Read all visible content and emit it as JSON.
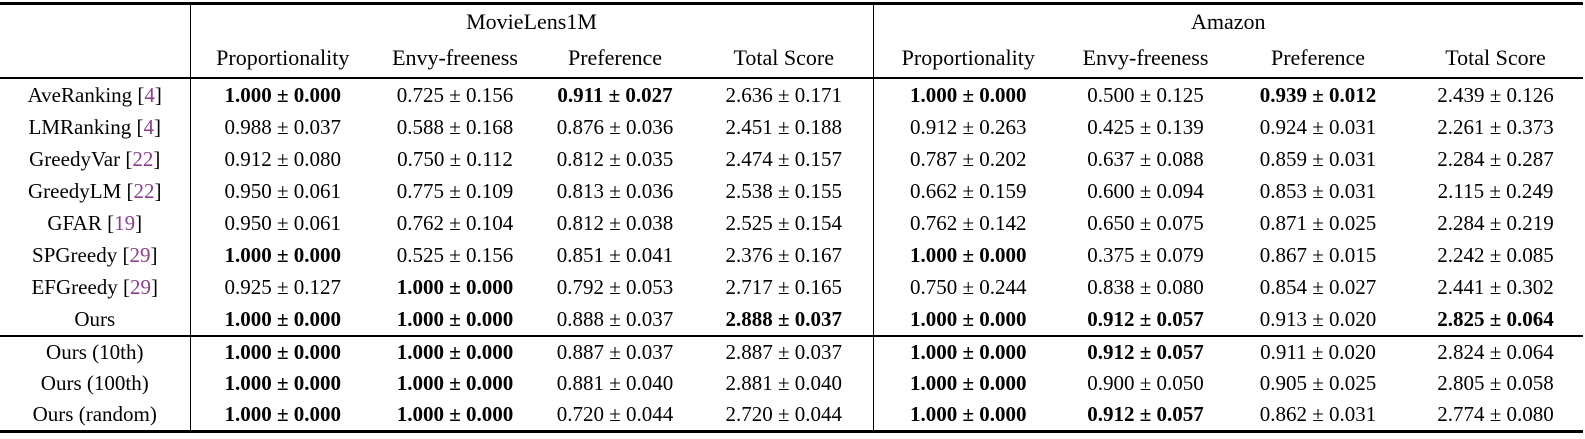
{
  "colors": {
    "citation": "#8c3f8c",
    "text": "#000000",
    "rule": "#000000",
    "background": "#ffffff"
  },
  "table": {
    "groups": [
      "MovieLens1M",
      "Amazon"
    ],
    "metrics": [
      "Proportionality",
      "Envy-freeness",
      "Preference",
      "Total Score",
      "Proportionality",
      "Envy-freeness",
      "Preference",
      "Total Score"
    ],
    "sections": [
      {
        "rows": [
          {
            "label": "AveRanking",
            "cite": "4",
            "cells": [
              {
                "t": "1.000 ± 0.000",
                "b": true
              },
              {
                "t": "0.725 ± 0.156",
                "b": false
              },
              {
                "t": "0.911 ± 0.027",
                "b": true
              },
              {
                "t": "2.636 ± 0.171",
                "b": false
              },
              {
                "t": "1.000 ± 0.000",
                "b": true
              },
              {
                "t": "0.500 ± 0.125",
                "b": false
              },
              {
                "t": "0.939 ± 0.012",
                "b": true
              },
              {
                "t": "2.439 ± 0.126",
                "b": false
              }
            ]
          },
          {
            "label": "LMRanking",
            "cite": "4",
            "cells": [
              {
                "t": "0.988 ± 0.037",
                "b": false
              },
              {
                "t": "0.588 ± 0.168",
                "b": false
              },
              {
                "t": "0.876 ± 0.036",
                "b": false
              },
              {
                "t": "2.451 ± 0.188",
                "b": false
              },
              {
                "t": "0.912 ± 0.263",
                "b": false
              },
              {
                "t": "0.425 ± 0.139",
                "b": false
              },
              {
                "t": "0.924 ± 0.031",
                "b": false
              },
              {
                "t": "2.261 ± 0.373",
                "b": false
              }
            ]
          },
          {
            "label": "GreedyVar",
            "cite": "22",
            "cells": [
              {
                "t": "0.912 ± 0.080",
                "b": false
              },
              {
                "t": "0.750 ± 0.112",
                "b": false
              },
              {
                "t": "0.812 ± 0.035",
                "b": false
              },
              {
                "t": "2.474 ± 0.157",
                "b": false
              },
              {
                "t": "0.787 ± 0.202",
                "b": false
              },
              {
                "t": "0.637 ± 0.088",
                "b": false
              },
              {
                "t": "0.859 ± 0.031",
                "b": false
              },
              {
                "t": "2.284 ± 0.287",
                "b": false
              }
            ]
          },
          {
            "label": "GreedyLM",
            "cite": "22",
            "cells": [
              {
                "t": "0.950 ± 0.061",
                "b": false
              },
              {
                "t": "0.775 ± 0.109",
                "b": false
              },
              {
                "t": "0.813 ± 0.036",
                "b": false
              },
              {
                "t": "2.538 ± 0.155",
                "b": false
              },
              {
                "t": "0.662 ± 0.159",
                "b": false
              },
              {
                "t": "0.600 ± 0.094",
                "b": false
              },
              {
                "t": "0.853 ± 0.031",
                "b": false
              },
              {
                "t": "2.115 ± 0.249",
                "b": false
              }
            ]
          },
          {
            "label": "GFAR",
            "cite": "19",
            "cells": [
              {
                "t": "0.950 ± 0.061",
                "b": false
              },
              {
                "t": "0.762 ± 0.104",
                "b": false
              },
              {
                "t": "0.812 ± 0.038",
                "b": false
              },
              {
                "t": "2.525 ± 0.154",
                "b": false
              },
              {
                "t": "0.762 ± 0.142",
                "b": false
              },
              {
                "t": "0.650 ± 0.075",
                "b": false
              },
              {
                "t": "0.871 ± 0.025",
                "b": false
              },
              {
                "t": "2.284 ± 0.219",
                "b": false
              }
            ]
          },
          {
            "label": "SPGreedy",
            "cite": "29",
            "cells": [
              {
                "t": "1.000 ± 0.000",
                "b": true
              },
              {
                "t": "0.525 ± 0.156",
                "b": false
              },
              {
                "t": "0.851 ± 0.041",
                "b": false
              },
              {
                "t": "2.376 ± 0.167",
                "b": false
              },
              {
                "t": "1.000 ± 0.000",
                "b": true
              },
              {
                "t": "0.375 ± 0.079",
                "b": false
              },
              {
                "t": "0.867 ± 0.015",
                "b": false
              },
              {
                "t": "2.242 ± 0.085",
                "b": false
              }
            ]
          },
          {
            "label": "EFGreedy",
            "cite": "29",
            "cells": [
              {
                "t": "0.925 ± 0.127",
                "b": false
              },
              {
                "t": "1.000 ± 0.000",
                "b": true
              },
              {
                "t": "0.792 ± 0.053",
                "b": false
              },
              {
                "t": "2.717 ± 0.165",
                "b": false
              },
              {
                "t": "0.750 ± 0.244",
                "b": false
              },
              {
                "t": "0.838 ± 0.080",
                "b": false
              },
              {
                "t": "0.854 ± 0.027",
                "b": false
              },
              {
                "t": "2.441 ± 0.302",
                "b": false
              }
            ]
          },
          {
            "label": "Ours",
            "cite": null,
            "cells": [
              {
                "t": "1.000 ± 0.000",
                "b": true
              },
              {
                "t": "1.000 ± 0.000",
                "b": true
              },
              {
                "t": "0.888 ± 0.037",
                "b": false
              },
              {
                "t": "2.888 ± 0.037",
                "b": true
              },
              {
                "t": "1.000 ± 0.000",
                "b": true
              },
              {
                "t": "0.912 ± 0.057",
                "b": true
              },
              {
                "t": "0.913 ± 0.020",
                "b": false
              },
              {
                "t": "2.825 ± 0.064",
                "b": true
              }
            ]
          }
        ]
      },
      {
        "rows": [
          {
            "label": "Ours (10th)",
            "cite": null,
            "cells": [
              {
                "t": "1.000 ± 0.000",
                "b": true
              },
              {
                "t": "1.000 ± 0.000",
                "b": true
              },
              {
                "t": "0.887 ± 0.037",
                "b": false
              },
              {
                "t": "2.887 ± 0.037",
                "b": false
              },
              {
                "t": "1.000 ± 0.000",
                "b": true
              },
              {
                "t": "0.912 ± 0.057",
                "b": true
              },
              {
                "t": "0.911 ± 0.020",
                "b": false
              },
              {
                "t": "2.824 ± 0.064",
                "b": false
              }
            ]
          },
          {
            "label": "Ours (100th)",
            "cite": null,
            "cells": [
              {
                "t": "1.000 ± 0.000",
                "b": true
              },
              {
                "t": "1.000 ± 0.000",
                "b": true
              },
              {
                "t": "0.881 ± 0.040",
                "b": false
              },
              {
                "t": "2.881 ± 0.040",
                "b": false
              },
              {
                "t": "1.000 ± 0.000",
                "b": true
              },
              {
                "t": "0.900 ± 0.050",
                "b": false
              },
              {
                "t": "0.905 ± 0.025",
                "b": false
              },
              {
                "t": "2.805 ± 0.058",
                "b": false
              }
            ]
          },
          {
            "label": "Ours (random)",
            "cite": null,
            "cells": [
              {
                "t": "1.000 ± 0.000",
                "b": true
              },
              {
                "t": "1.000 ± 0.000",
                "b": true
              },
              {
                "t": "0.720 ± 0.044",
                "b": false
              },
              {
                "t": "2.720 ± 0.044",
                "b": false
              },
              {
                "t": "1.000 ± 0.000",
                "b": true
              },
              {
                "t": "0.912 ± 0.057",
                "b": true
              },
              {
                "t": "0.862 ± 0.031",
                "b": false
              },
              {
                "t": "2.774 ± 0.080",
                "b": false
              }
            ]
          }
        ]
      }
    ]
  }
}
